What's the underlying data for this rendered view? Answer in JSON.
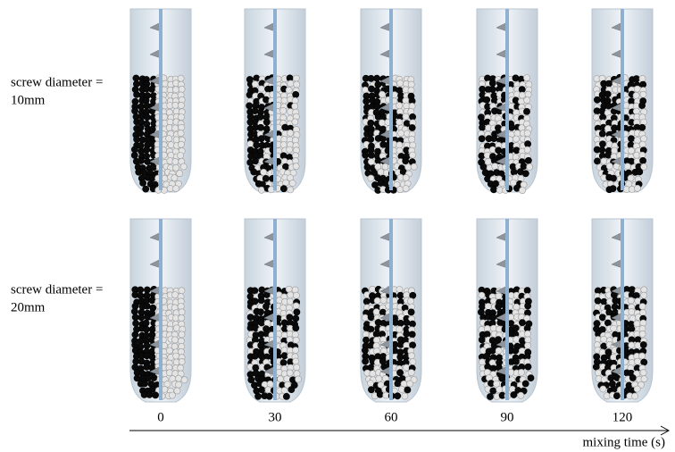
{
  "rows": [
    {
      "label_line1": "screw diameter =",
      "label_line2": "10mm"
    },
    {
      "label_line1": "screw diameter =",
      "label_line2": "20mm"
    }
  ],
  "times": [
    "0",
    "30",
    "60",
    "90",
    "120"
  ],
  "axis_label": "mixing time (s)"
}
